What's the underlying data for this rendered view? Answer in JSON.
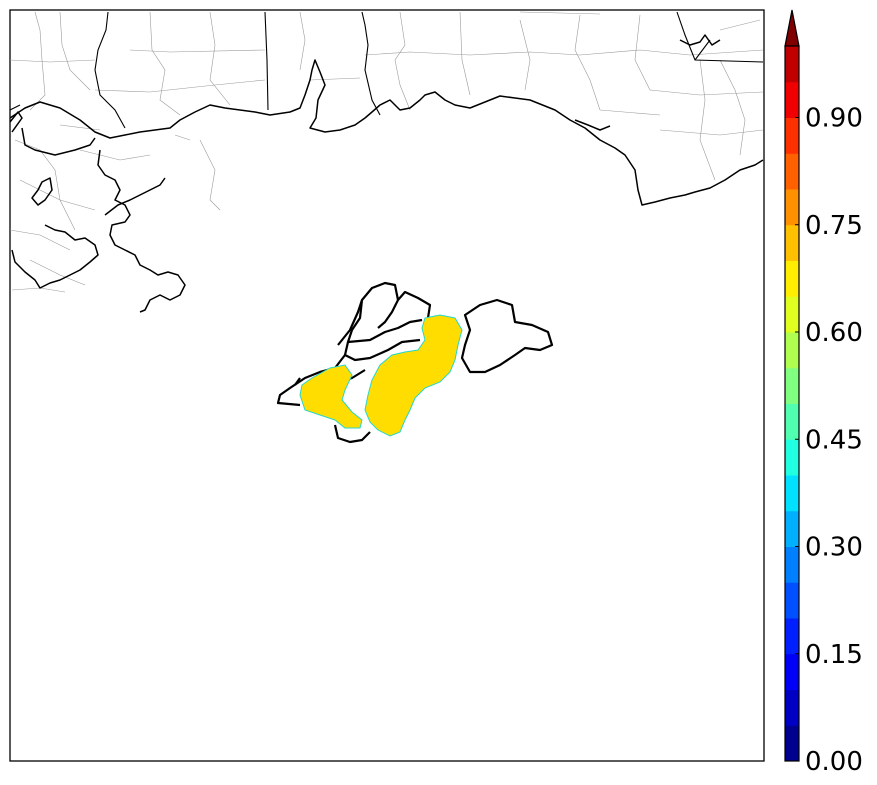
{
  "map": {
    "type": "contour-fill map",
    "region": "Northern Gulf of Mexico coast",
    "fill_value_class": "0.65-0.70",
    "fill_color": "#ffdd00"
  },
  "colorbar": {
    "min": 0.0,
    "max": 1.0,
    "extend": "max",
    "tick_labels": [
      "0.00",
      "0.15",
      "0.30",
      "0.45",
      "0.60",
      "0.75",
      "0.90"
    ],
    "tick_values": [
      0.0,
      0.15,
      0.3,
      0.45,
      0.6,
      0.75,
      0.9
    ],
    "levels": 20,
    "colors": [
      "#00008f",
      "#0000c4",
      "#0000f8",
      "#0020ff",
      "#0050ff",
      "#0080ff",
      "#00b0ff",
      "#00e0ff",
      "#20ffe0",
      "#50ffb0",
      "#80ff80",
      "#b0ff50",
      "#e0ff20",
      "#ffee00",
      "#ffc000",
      "#ff9000",
      "#ff6000",
      "#ff3000",
      "#f00000",
      "#c00000"
    ],
    "extend_color": "#800000"
  }
}
